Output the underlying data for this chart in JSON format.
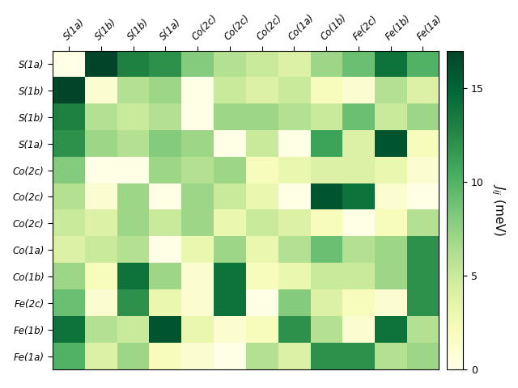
{
  "labels": [
    "S(1a)",
    "S(1b)",
    "S(1b)",
    "S(1a)",
    "Co(2c)",
    "Co(2c)",
    "Co(2c)",
    "Co(1a)",
    "Co(1b)",
    "Fe(2c)",
    "Fe(1b)",
    "Fe(1a)"
  ],
  "col_labels": [
    "S(1a)",
    "S(1b)",
    "S(1b)",
    "S(1a)",
    "Co(2c)",
    "Co(2c)",
    "Co(2c)",
    "Co(1a)",
    "Co(1b)",
    "Fe(2c)",
    "Fe(1b)",
    "Fe(1a)"
  ],
  "data": [
    [
      0,
      17,
      13,
      12,
      8,
      6,
      5,
      4,
      7,
      9,
      14,
      10
    ],
    [
      17,
      1,
      6,
      7,
      0,
      5,
      4,
      5,
      2,
      1,
      6,
      4
    ],
    [
      13,
      6,
      5,
      6,
      0,
      7,
      7,
      6,
      5,
      9,
      5,
      7
    ],
    [
      12,
      7,
      6,
      8,
      7,
      0,
      5,
      0,
      11,
      4,
      16,
      2
    ],
    [
      8,
      0,
      0,
      7,
      6,
      7,
      2,
      3,
      4,
      4,
      3,
      1
    ],
    [
      6,
      1,
      7,
      0,
      7,
      5,
      3,
      0,
      16,
      14,
      1,
      0
    ],
    [
      5,
      4,
      7,
      5,
      7,
      3,
      5,
      4,
      2,
      0,
      2,
      6
    ],
    [
      4,
      5,
      6,
      0,
      3,
      7,
      3,
      6,
      9,
      6,
      7,
      12
    ],
    [
      7,
      2,
      14,
      7,
      1,
      14,
      2,
      3,
      5,
      5,
      7,
      12
    ],
    [
      9,
      1,
      12,
      3,
      1,
      14,
      0,
      8,
      4,
      2,
      1,
      12
    ],
    [
      14,
      6,
      5,
      16,
      3,
      1,
      2,
      12,
      6,
      1,
      14,
      6
    ],
    [
      10,
      4,
      7,
      2,
      1,
      0,
      6,
      4,
      12,
      12,
      6,
      7
    ]
  ],
  "vmin": 0,
  "vmax": 17,
  "cmap": "YlGn",
  "colorbar_label": "$J_{ij}$ (meV)",
  "colorbar_ticks": [
    0,
    5,
    10,
    15
  ],
  "figsize": [
    6.4,
    4.8
  ],
  "dpi": 100,
  "tick_fontsize": 8.5,
  "cbar_fontsize": 11
}
